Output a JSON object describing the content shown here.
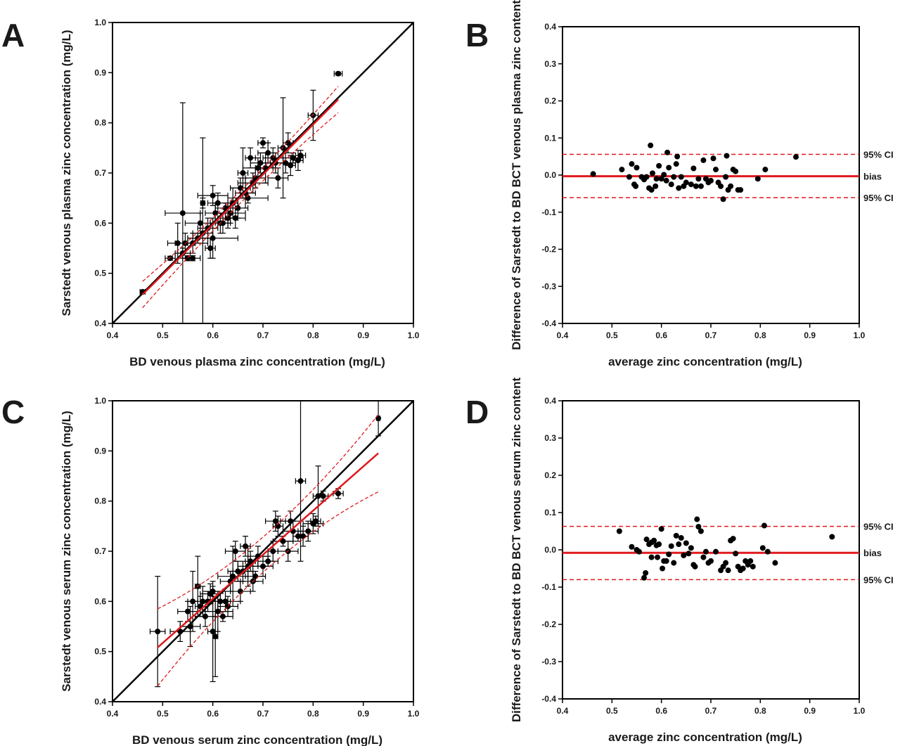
{
  "colors": {
    "ink": "#000000",
    "red": "#e0191d",
    "darkred": "#b01010"
  },
  "chart_data": [
    {
      "panel": "A",
      "type": "scatter",
      "xlabel": "BD venous plasma zinc concentration (mg/L)",
      "ylabel": "Sarstedt venous plasma zinc concentration (mg/L)",
      "xlim": [
        0.4,
        1.0
      ],
      "ylim": [
        0.4,
        1.0
      ],
      "xticks": [
        "0.4",
        "0.5",
        "0.6",
        "0.7",
        "0.8",
        "0.9",
        "1.0"
      ],
      "yticks": [
        "0.4",
        "0.5",
        "0.6",
        "0.7",
        "0.8",
        "0.9",
        "1.0"
      ],
      "identity_line": true,
      "regression": {
        "slope": 0.997,
        "intercept": -0.001,
        "x_range": [
          0.46,
          0.85
        ],
        "ci_width": 0.012
      },
      "points": [
        [
          0.46,
          0.463,
          0.005,
          0.003
        ],
        [
          0.515,
          0.53,
          0.01,
          0.004
        ],
        [
          0.53,
          0.56,
          0.02,
          0.04
        ],
        [
          0.54,
          0.62,
          0.035,
          0.22
        ],
        [
          0.54,
          0.54,
          0.015,
          0.01
        ],
        [
          0.545,
          0.56,
          0.02,
          0.02
        ],
        [
          0.55,
          0.53,
          0.01,
          0.005
        ],
        [
          0.56,
          0.53,
          0.015,
          0.005
        ],
        [
          0.56,
          0.56,
          0.03,
          0.02
        ],
        [
          0.57,
          0.57,
          0.02,
          0.01
        ],
        [
          0.575,
          0.6,
          0.03,
          0.02
        ],
        [
          0.58,
          0.58,
          0.02,
          0.19
        ],
        [
          0.58,
          0.64,
          0.004,
          0.01
        ],
        [
          0.59,
          0.59,
          0.02,
          0.02
        ],
        [
          0.595,
          0.55,
          0.01,
          0.02
        ],
        [
          0.6,
          0.57,
          0.05,
          0.04
        ],
        [
          0.6,
          0.655,
          0.03,
          0.02
        ],
        [
          0.605,
          0.62,
          0.02,
          0.02
        ],
        [
          0.61,
          0.64,
          0.02,
          0.02
        ],
        [
          0.615,
          0.6,
          0.02,
          0.02
        ],
        [
          0.62,
          0.6,
          0.01,
          0.02
        ],
        [
          0.625,
          0.63,
          0.02,
          0.01
        ],
        [
          0.63,
          0.61,
          0.02,
          0.02
        ],
        [
          0.635,
          0.62,
          0.03,
          0.02
        ],
        [
          0.64,
          0.64,
          0.01,
          0.03
        ],
        [
          0.645,
          0.61,
          0.02,
          0.02
        ],
        [
          0.65,
          0.63,
          0.02,
          0.02
        ],
        [
          0.655,
          0.67,
          0.02,
          0.02
        ],
        [
          0.66,
          0.7,
          0.01,
          0.05
        ],
        [
          0.665,
          0.66,
          0.02,
          0.03
        ],
        [
          0.67,
          0.65,
          0.04,
          0.01
        ],
        [
          0.675,
          0.73,
          0.01,
          0.02
        ],
        [
          0.68,
          0.68,
          0.03,
          0.02
        ],
        [
          0.685,
          0.69,
          0.02,
          0.02
        ],
        [
          0.69,
          0.71,
          0.03,
          0.02
        ],
        [
          0.695,
          0.72,
          0.02,
          0.02
        ],
        [
          0.7,
          0.76,
          0.01,
          0.01
        ],
        [
          0.705,
          0.71,
          0.02,
          0.03
        ],
        [
          0.71,
          0.74,
          0.02,
          0.02
        ],
        [
          0.72,
          0.73,
          0.02,
          0.02
        ],
        [
          0.725,
          0.72,
          0.03,
          0.02
        ],
        [
          0.73,
          0.69,
          0.02,
          0.02
        ],
        [
          0.74,
          0.75,
          0.01,
          0.1
        ],
        [
          0.745,
          0.72,
          0.02,
          0.02
        ],
        [
          0.75,
          0.76,
          0.01,
          0.02
        ],
        [
          0.755,
          0.715,
          0.01,
          0.02
        ],
        [
          0.76,
          0.73,
          0.02,
          0.01
        ],
        [
          0.77,
          0.725,
          0.01,
          0.02
        ],
        [
          0.775,
          0.735,
          0.01,
          0.01
        ],
        [
          0.8,
          0.815,
          0.01,
          0.05
        ],
        [
          0.85,
          0.898,
          0.008,
          0.003
        ]
      ]
    },
    {
      "panel": "B",
      "type": "scatter",
      "xlabel": "average zinc concentration (mg/L)",
      "ylabel": "Difference of Sarstedt to BD BCT venous plasma zinc content",
      "xlim": [
        0.4,
        1.0
      ],
      "ylim": [
        -0.4,
        0.4
      ],
      "xticks": [
        "0.4",
        "0.5",
        "0.6",
        "0.7",
        "0.8",
        "0.9",
        "1.0"
      ],
      "yticks": [
        "-0.4",
        "-0.3",
        "-0.2",
        "-0.1",
        "0.0",
        "0.1",
        "0.2",
        "0.3",
        "0.4"
      ],
      "bias": -0.003,
      "upper_95_ci": 0.056,
      "lower_95_ci": -0.061,
      "line_labels": {
        "upper": "95% CI",
        "bias": "bias",
        "lower": "95% CI"
      },
      "points": [
        [
          0.462,
          0.003
        ],
        [
          0.52,
          0.015
        ],
        [
          0.535,
          -0.005
        ],
        [
          0.54,
          0.03
        ],
        [
          0.545,
          -0.025
        ],
        [
          0.548,
          -0.03
        ],
        [
          0.55,
          0.02
        ],
        [
          0.56,
          -0.005
        ],
        [
          0.565,
          -0.012
        ],
        [
          0.57,
          -0.005
        ],
        [
          0.575,
          -0.035
        ],
        [
          0.578,
          0.08
        ],
        [
          0.58,
          -0.04
        ],
        [
          0.582,
          0.005
        ],
        [
          0.588,
          -0.03
        ],
        [
          0.59,
          -0.01
        ],
        [
          0.595,
          0.025
        ],
        [
          0.6,
          -0.01
        ],
        [
          0.605,
          0.001
        ],
        [
          0.61,
          -0.015
        ],
        [
          0.612,
          0.061
        ],
        [
          0.615,
          0.02
        ],
        [
          0.62,
          -0.025
        ],
        [
          0.625,
          -0.005
        ],
        [
          0.63,
          0.03
        ],
        [
          0.632,
          0.05
        ],
        [
          0.635,
          -0.035
        ],
        [
          0.64,
          -0.005
        ],
        [
          0.645,
          -0.03
        ],
        [
          0.65,
          -0.02
        ],
        [
          0.66,
          -0.025
        ],
        [
          0.665,
          0.018
        ],
        [
          0.67,
          -0.03
        ],
        [
          0.675,
          -0.01
        ],
        [
          0.68,
          -0.03
        ],
        [
          0.685,
          0.04
        ],
        [
          0.69,
          -0.01
        ],
        [
          0.695,
          -0.02
        ],
        [
          0.7,
          -0.015
        ],
        [
          0.705,
          0.045
        ],
        [
          0.71,
          0.015
        ],
        [
          0.715,
          -0.02
        ],
        [
          0.72,
          -0.03
        ],
        [
          0.725,
          -0.065
        ],
        [
          0.73,
          -0.005
        ],
        [
          0.732,
          0.052
        ],
        [
          0.735,
          -0.04
        ],
        [
          0.74,
          -0.03
        ],
        [
          0.745,
          0.015
        ],
        [
          0.75,
          0.01
        ],
        [
          0.755,
          -0.04
        ],
        [
          0.76,
          -0.04
        ],
        [
          0.795,
          -0.01
        ],
        [
          0.81,
          0.015
        ],
        [
          0.872,
          0.049
        ]
      ]
    },
    {
      "panel": "C",
      "type": "scatter",
      "xlabel": "BD venous serum zinc concentration (mg/L)",
      "ylabel": "Sarstedt venous serum zinc concentration (mg/L)",
      "xlim": [
        0.4,
        1.0
      ],
      "ylim": [
        0.4,
        1.0
      ],
      "xticks": [
        "0.4",
        "0.5",
        "0.6",
        "0.7",
        "0.8",
        "0.9",
        "1.0"
      ],
      "yticks": [
        "0.4",
        "0.5",
        "0.6",
        "0.7",
        "0.8",
        "0.9",
        "1.0"
      ],
      "identity_line": true,
      "regression": {
        "slope": 0.88,
        "intercept": 0.077,
        "x_range": [
          0.49,
          0.93
        ],
        "ci_width": 0.035
      },
      "points": [
        [
          0.49,
          0.54,
          0.015,
          0.11
        ],
        [
          0.535,
          0.54,
          0.02,
          0.02
        ],
        [
          0.55,
          0.58,
          0.02,
          0.02
        ],
        [
          0.555,
          0.55,
          0.02,
          0.04
        ],
        [
          0.56,
          0.6,
          0.01,
          0.06
        ],
        [
          0.57,
          0.63,
          0.005,
          0.06
        ],
        [
          0.575,
          0.59,
          0.01,
          0.02
        ],
        [
          0.58,
          0.6,
          0.02,
          0.03
        ],
        [
          0.585,
          0.57,
          0.02,
          0.02
        ],
        [
          0.59,
          0.6,
          0.01,
          0.02
        ],
        [
          0.595,
          0.615,
          0.02,
          0.02
        ],
        [
          0.6,
          0.62,
          0.02,
          0.01
        ],
        [
          0.6,
          0.54,
          0.01,
          0.1
        ],
        [
          0.605,
          0.53,
          0.005,
          0.08
        ],
        [
          0.61,
          0.58,
          0.03,
          0.04
        ],
        [
          0.615,
          0.6,
          0.02,
          0.02
        ],
        [
          0.62,
          0.57,
          0.02,
          0.01
        ],
        [
          0.625,
          0.6,
          0.03,
          0.02
        ],
        [
          0.63,
          0.59,
          0.02,
          0.02
        ],
        [
          0.635,
          0.64,
          0.02,
          0.02
        ],
        [
          0.64,
          0.65,
          0.03,
          0.06
        ],
        [
          0.645,
          0.7,
          0.02,
          0.02
        ],
        [
          0.65,
          0.66,
          0.02,
          0.02
        ],
        [
          0.655,
          0.62,
          0.02,
          0.02
        ],
        [
          0.66,
          0.66,
          0.02,
          0.02
        ],
        [
          0.665,
          0.71,
          0.01,
          0.02
        ],
        [
          0.67,
          0.67,
          0.02,
          0.04
        ],
        [
          0.675,
          0.68,
          0.01,
          0.02
        ],
        [
          0.68,
          0.64,
          0.02,
          0.02
        ],
        [
          0.685,
          0.65,
          0.02,
          0.01
        ],
        [
          0.69,
          0.69,
          0.02,
          0.02
        ],
        [
          0.7,
          0.67,
          0.02,
          0.02
        ],
        [
          0.71,
          0.68,
          0.02,
          0.01
        ],
        [
          0.72,
          0.7,
          0.01,
          0.02
        ],
        [
          0.725,
          0.76,
          0.02,
          0.02
        ],
        [
          0.73,
          0.75,
          0.01,
          0.02
        ],
        [
          0.74,
          0.72,
          0.02,
          0.01
        ],
        [
          0.75,
          0.7,
          0.02,
          0.02
        ],
        [
          0.755,
          0.76,
          0.02,
          0.02
        ],
        [
          0.76,
          0.74,
          0.02,
          0.02
        ],
        [
          0.77,
          0.73,
          0.01,
          0.01
        ],
        [
          0.775,
          0.84,
          0.01,
          0.16
        ],
        [
          0.78,
          0.73,
          0.01,
          0.02
        ],
        [
          0.79,
          0.74,
          0.02,
          0.02
        ],
        [
          0.8,
          0.755,
          0.02,
          0.02
        ],
        [
          0.805,
          0.76,
          0.01,
          0.01
        ],
        [
          0.81,
          0.81,
          0.01,
          0.06
        ],
        [
          0.82,
          0.81,
          0.01,
          0.01
        ],
        [
          0.85,
          0.815,
          0.01,
          0.01
        ],
        [
          0.93,
          0.965,
          0.003,
          0.035
        ]
      ]
    },
    {
      "panel": "D",
      "type": "scatter",
      "xlabel": "average zinc concentration (mg/L)",
      "ylabel": "Difference of Sarstedt to BD BCT venous serum zinc content",
      "xlim": [
        0.4,
        1.0
      ],
      "ylim": [
        -0.4,
        0.4
      ],
      "xticks": [
        "0.4",
        "0.5",
        "0.6",
        "0.7",
        "0.8",
        "0.9",
        "1.0"
      ],
      "yticks": [
        "-0.4",
        "-0.3",
        "-0.2",
        "-0.1",
        "0.0",
        "0.1",
        "0.2",
        "0.3",
        "0.4"
      ],
      "bias": -0.008,
      "upper_95_ci": 0.063,
      "lower_95_ci": -0.08,
      "line_labels": {
        "upper": "95% CI",
        "bias": "bias",
        "lower": "95% CI"
      },
      "points": [
        [
          0.515,
          0.05
        ],
        [
          0.54,
          0.008
        ],
        [
          0.55,
          0.0
        ],
        [
          0.555,
          -0.005
        ],
        [
          0.565,
          -0.075
        ],
        [
          0.568,
          -0.062
        ],
        [
          0.57,
          0.028
        ],
        [
          0.575,
          0.015
        ],
        [
          0.58,
          0.02
        ],
        [
          0.58,
          -0.02
        ],
        [
          0.585,
          0.025
        ],
        [
          0.59,
          0.012
        ],
        [
          0.592,
          -0.02
        ],
        [
          0.595,
          0.015
        ],
        [
          0.6,
          0.056
        ],
        [
          0.602,
          -0.05
        ],
        [
          0.605,
          -0.03
        ],
        [
          0.61,
          -0.03
        ],
        [
          0.615,
          -0.012
        ],
        [
          0.62,
          0.01
        ],
        [
          0.625,
          -0.035
        ],
        [
          0.63,
          0.038
        ],
        [
          0.635,
          0.015
        ],
        [
          0.64,
          0.032
        ],
        [
          0.645,
          -0.015
        ],
        [
          0.65,
          0.018
        ],
        [
          0.655,
          -0.01
        ],
        [
          0.66,
          0.005
        ],
        [
          0.665,
          -0.04
        ],
        [
          0.668,
          -0.045
        ],
        [
          0.672,
          0.082
        ],
        [
          0.675,
          0.062
        ],
        [
          0.68,
          0.05
        ],
        [
          0.685,
          -0.02
        ],
        [
          0.69,
          -0.005
        ],
        [
          0.695,
          -0.035
        ],
        [
          0.7,
          -0.03
        ],
        [
          0.71,
          -0.005
        ],
        [
          0.72,
          -0.055
        ],
        [
          0.725,
          -0.045
        ],
        [
          0.73,
          -0.035
        ],
        [
          0.735,
          -0.055
        ],
        [
          0.74,
          0.025
        ],
        [
          0.745,
          0.03
        ],
        [
          0.75,
          -0.01
        ],
        [
          0.755,
          -0.045
        ],
        [
          0.76,
          -0.055
        ],
        [
          0.765,
          -0.05
        ],
        [
          0.77,
          -0.03
        ],
        [
          0.775,
          -0.04
        ],
        [
          0.78,
          -0.03
        ],
        [
          0.785,
          -0.045
        ],
        [
          0.805,
          0.005
        ],
        [
          0.808,
          0.065
        ],
        [
          0.815,
          -0.005
        ],
        [
          0.83,
          -0.035
        ],
        [
          0.945,
          0.035
        ]
      ]
    }
  ]
}
